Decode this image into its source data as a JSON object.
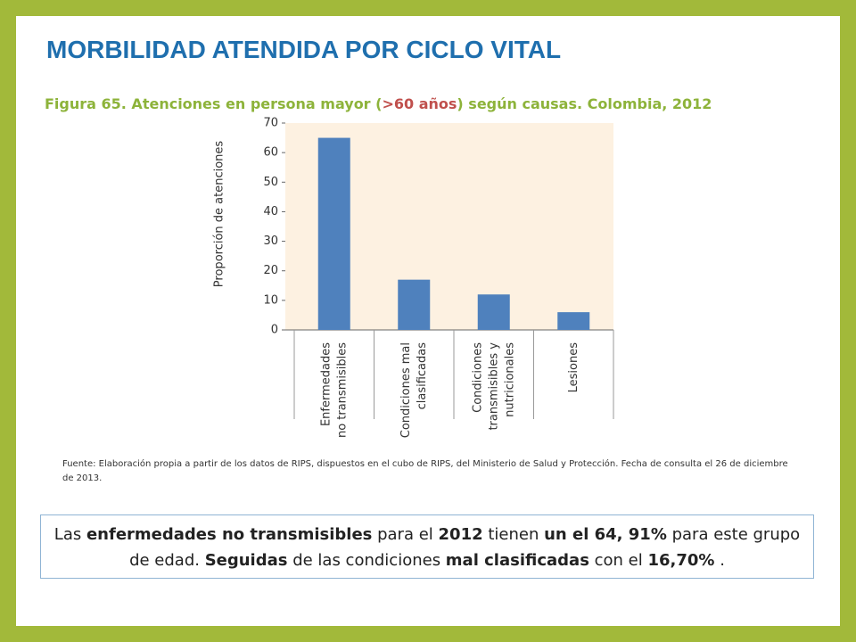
{
  "slide_title": "MORBILIDAD ATENDIDA POR CICLO VITAL",
  "figure_caption": [
    {
      "text": "Figura 65. Atenciones en persona mayor (",
      "color": "#8db33a"
    },
    {
      "text": ">60 años",
      "color": "#c0504d"
    },
    {
      "text": ") según causas. Colombia,  2012",
      "color": "#8db33a"
    }
  ],
  "chart_data": {
    "type": "bar",
    "y_label": "Proporción de atenciones",
    "categories": [
      [
        "Enfermedades",
        "no transmisibles"
      ],
      [
        "Condiciones mal",
        "clasificadas"
      ],
      [
        "Condiciones",
        "transmisibles y",
        "nutricionales"
      ],
      [
        "Lesiones"
      ]
    ],
    "values": [
      65,
      17,
      12,
      6
    ],
    "color": "#4f81bd",
    "ylim": [
      0,
      70
    ],
    "yticks": [
      0,
      10,
      20,
      30,
      40,
      50,
      60,
      70
    ]
  },
  "source": "Fuente: Elaboración propia a partir de los datos de RIPS, dispuestos en el cubo de RIPS, del Ministerio de Salud y Protección. Fecha de consulta el 26 de diciembre de 2013.",
  "summary": [
    {
      "text": "Las ",
      "bold": false
    },
    {
      "text": "enfermedades no transmisibles",
      "bold": true
    },
    {
      "text": " para el ",
      "bold": false
    },
    {
      "text": "2012",
      "bold": true
    },
    {
      "text": " tienen ",
      "bold": false
    },
    {
      "text": "un el 64, 91%",
      "bold": true
    },
    {
      "text": " para este grupo de edad.  ",
      "bold": false
    },
    {
      "text": "Seguidas",
      "bold": true
    },
    {
      "text": " de las condiciones ",
      "bold": false
    },
    {
      "text": "mal clasificadas",
      "bold": true
    },
    {
      "text": " con el ",
      "bold": false
    },
    {
      "text": "16,70%",
      "bold": true
    },
    {
      "text": " .",
      "bold": false
    }
  ]
}
